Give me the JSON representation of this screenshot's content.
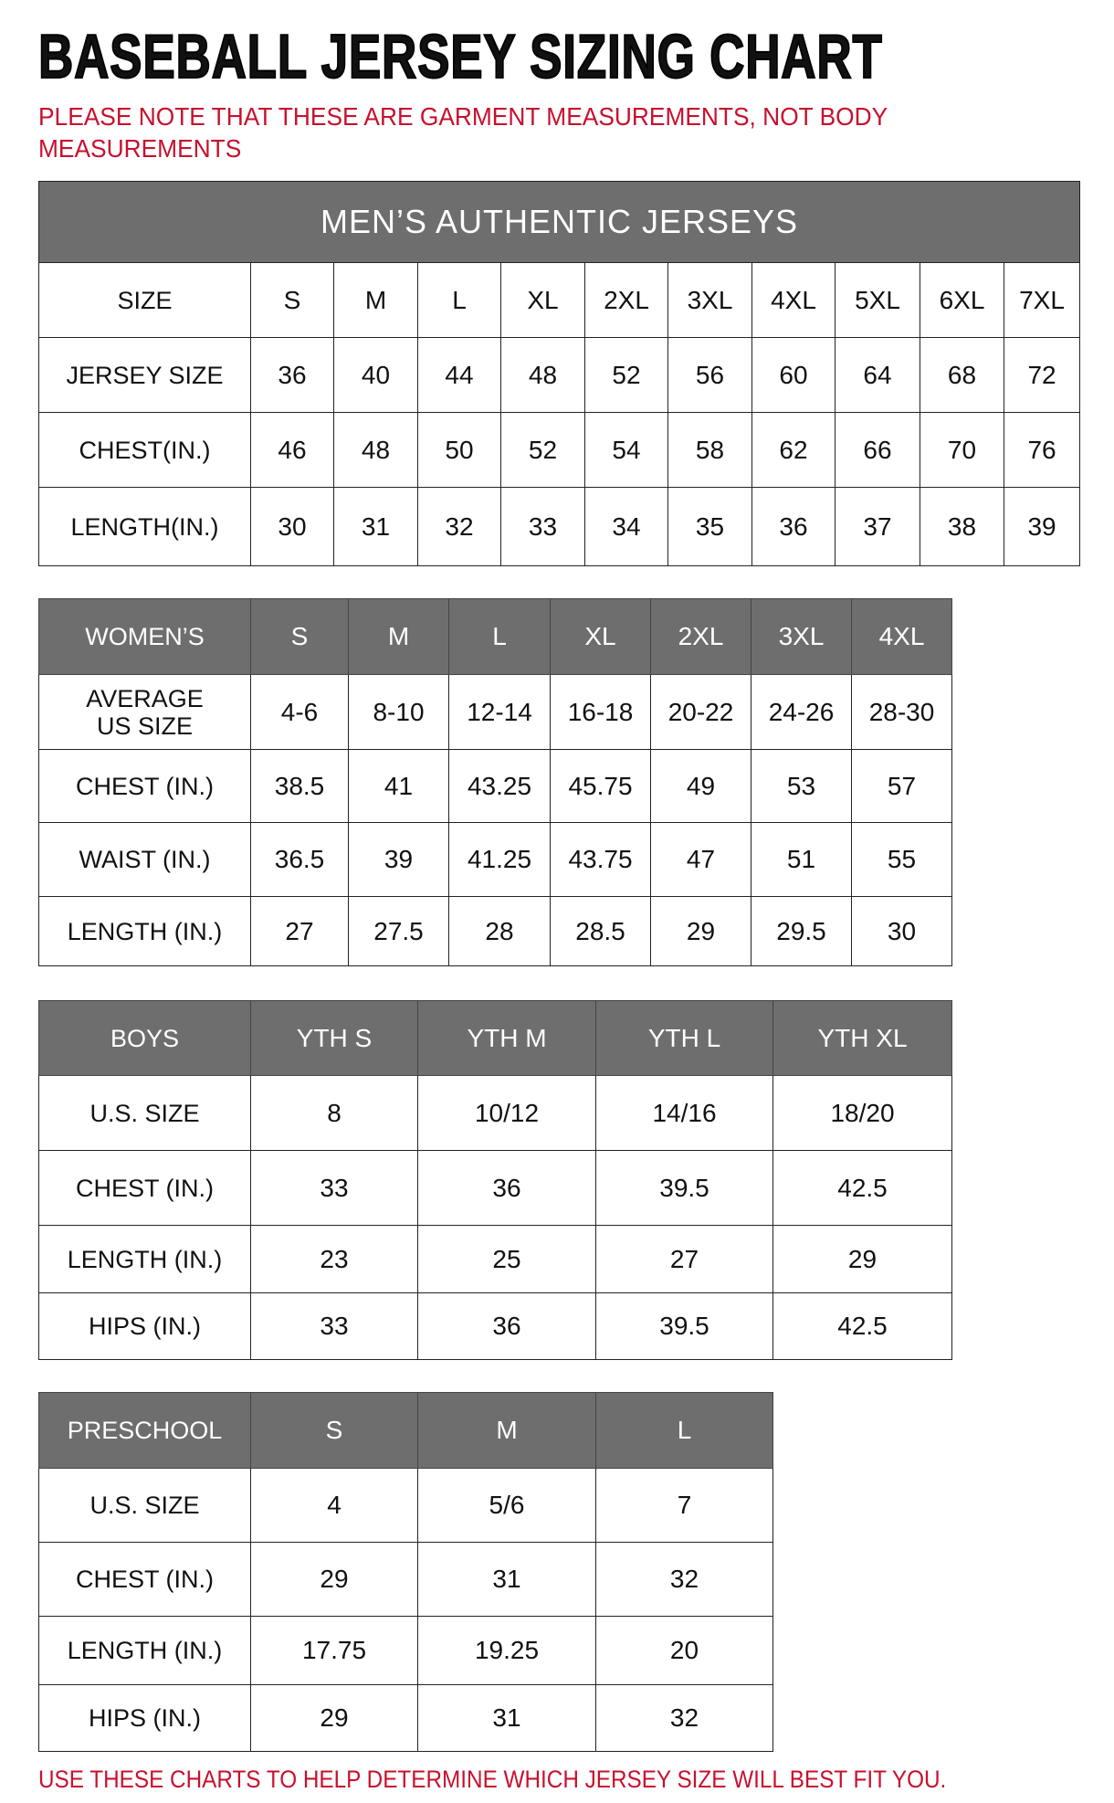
{
  "title": "BASEBALL JERSEY SIZING CHART",
  "note": "PLEASE NOTE THAT THESE ARE GARMENT MEASUREMENTS, NOT BODY MEASUREMENTS",
  "footer": "USE THESE CHARTS TO HELP DETERMINE WHICH JERSEY SIZE WILL BEST FIT YOU.",
  "colors": {
    "header_bg": "#6e6e6e",
    "accent_red": "#c8102e"
  },
  "tables": [
    {
      "id": "mens",
      "caption": "MEN’S AUTHENTIC JERSEYS",
      "header": [
        "SIZE",
        "S",
        "M",
        "L",
        "XL",
        "2XL",
        "3XL",
        "4XL",
        "5XL",
        "6XL",
        "7XL"
      ],
      "header_style": "plain",
      "rows": [
        [
          "JERSEY SIZE",
          "36",
          "40",
          "44",
          "48",
          "52",
          "56",
          "60",
          "64",
          "68",
          "72"
        ],
        [
          "CHEST(IN.)",
          "46",
          "48",
          "50",
          "52",
          "54",
          "58",
          "62",
          "66",
          "70",
          "76"
        ],
        [
          "LENGTH(IN.)",
          "30",
          "31",
          "32",
          "33",
          "34",
          "35",
          "36",
          "37",
          "38",
          "39"
        ]
      ]
    },
    {
      "id": "womens",
      "header": [
        "WOMEN’S",
        "S",
        "M",
        "L",
        "XL",
        "2XL",
        "3XL",
        "4XL"
      ],
      "header_style": "gray",
      "rows": [
        [
          "AVERAGE\nUS SIZE",
          "4-6",
          "8-10",
          "12-14",
          "16-18",
          "20-22",
          "24-26",
          "28-30"
        ],
        [
          "CHEST (IN.)",
          "38.5",
          "41",
          "43.25",
          "45.75",
          "49",
          "53",
          "57"
        ],
        [
          "WAIST (IN.)",
          "36.5",
          "39",
          "41.25",
          "43.75",
          "47",
          "51",
          "55"
        ],
        [
          "LENGTH (IN.)",
          "27",
          "27.5",
          "28",
          "28.5",
          "29",
          "29.5",
          "30"
        ]
      ]
    },
    {
      "id": "boys",
      "header": [
        "BOYS",
        "YTH S",
        "YTH M",
        "YTH L",
        "YTH XL"
      ],
      "header_style": "gray",
      "rows": [
        [
          "U.S. SIZE",
          "8",
          "10/12",
          "14/16",
          "18/20"
        ],
        [
          "CHEST (IN.)",
          "33",
          "36",
          "39.5",
          "42.5"
        ],
        [
          "LENGTH (IN.)",
          "23",
          "25",
          "27",
          "29"
        ],
        [
          "HIPS (IN.)",
          "33",
          "36",
          "39.5",
          "42.5"
        ]
      ]
    },
    {
      "id": "preschool",
      "header": [
        "PRESCHOOL",
        "S",
        "M",
        "L"
      ],
      "header_style": "gray",
      "rows": [
        [
          "U.S. SIZE",
          "4",
          "5/6",
          "7"
        ],
        [
          "CHEST (IN.)",
          "29",
          "31",
          "32"
        ],
        [
          "LENGTH (IN.)",
          "17.75",
          "19.25",
          "20"
        ],
        [
          "HIPS (IN.)",
          "29",
          "31",
          "32"
        ]
      ]
    }
  ]
}
